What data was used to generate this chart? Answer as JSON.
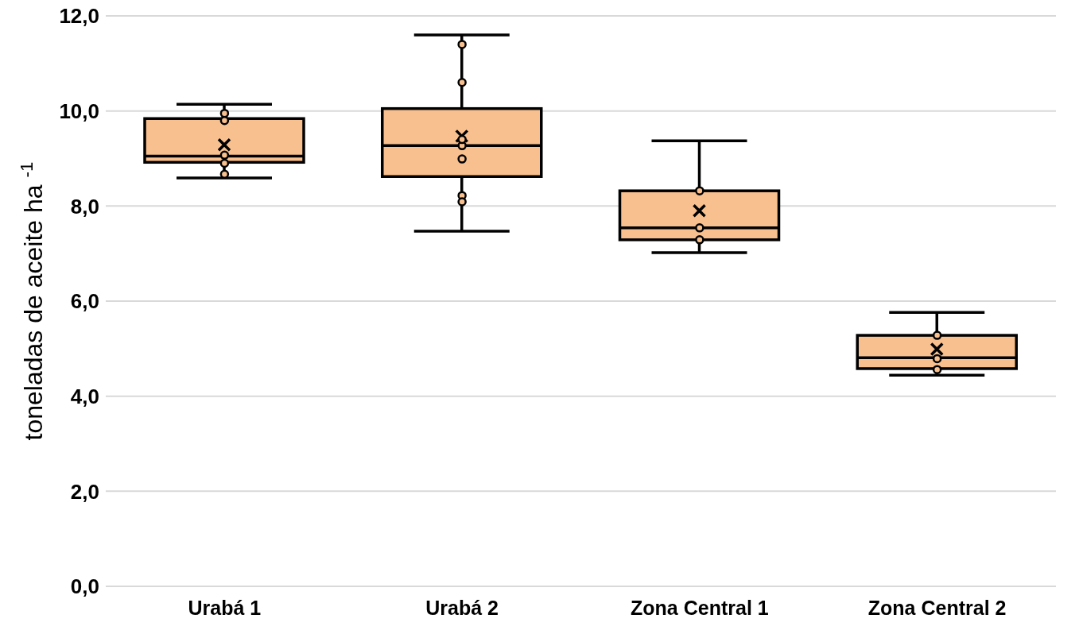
{
  "chart_data": {
    "type": "box",
    "ylabel": "toneladas de aceite ha $^{-1}$",
    "categories": [
      "Urabá 1",
      "Urabá 2",
      "Zona Central 1",
      "Zona Central 2"
    ],
    "series": [
      {
        "color": "#f8c08e",
        "boxes": [
          {
            "low": 8.59,
            "q1": 8.92,
            "median": 9.05,
            "q3": 9.84,
            "high": 10.14,
            "mean": 9.29
          },
          {
            "low": 7.47,
            "q1": 8.62,
            "median": 9.27,
            "q3": 10.05,
            "high": 11.6,
            "mean": 9.47
          },
          {
            "low": 7.02,
            "q1": 7.29,
            "median": 7.54,
            "q3": 8.32,
            "high": 9.37,
            "mean": 7.9
          },
          {
            "low": 4.44,
            "q1": 4.58,
            "median": 4.81,
            "q3": 5.28,
            "high": 5.76,
            "mean": 4.99
          }
        ]
      },
      {
        "type": "scatter",
        "color": "#f8c08e",
        "marker": "circle",
        "x": [
          "Urabá 1",
          "Urabá 1",
          "Urabá 1",
          "Urabá 1",
          "Urabá 1",
          "Urabá 2",
          "Urabá 2",
          "Urabá 2",
          "Urabá 2",
          "Urabá 2",
          "Urabá 2",
          "Urabá 2",
          "Zona Central 1",
          "Zona Central 1",
          "Zona Central 1",
          "Zona Central 2",
          "Zona Central 2",
          "Zona Central 2"
        ],
        "values": [
          9.95,
          9.8,
          9.07,
          8.9,
          8.67,
          11.4,
          10.6,
          9.27,
          8.99,
          8.22,
          8.09,
          9.4,
          8.32,
          7.54,
          7.29,
          5.28,
          4.79,
          4.56
        ]
      }
    ],
    "ylim": [
      0,
      12
    ],
    "yticks": [
      {
        "value": 0,
        "label": "0,0"
      },
      {
        "value": 2,
        "label": "2,0"
      },
      {
        "value": 4,
        "label": "4,0"
      },
      {
        "value": 6,
        "label": "6,0"
      },
      {
        "value": 8,
        "label": "8,0"
      },
      {
        "value": 10,
        "label": "10,0"
      },
      {
        "value": 12,
        "label": "12,0"
      }
    ],
    "grid": "y"
  }
}
